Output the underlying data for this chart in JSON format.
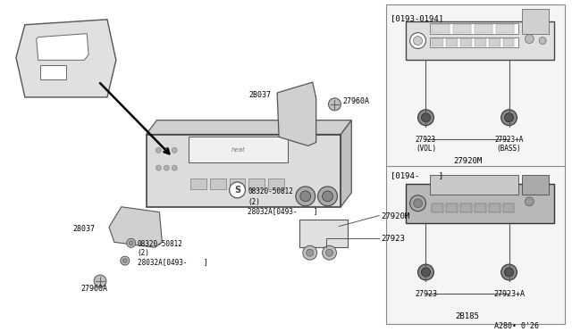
{
  "background_color": "#ffffff",
  "top_box_label": "[0193-0194]",
  "bottom_box_label": "[0194-    ]",
  "top_radio_label": "27920M",
  "bottom_radio_label": "2B185",
  "top_knob1_label": "27923\n(VOL)",
  "top_knob2_label": "27923+A\n(BASS)",
  "bottom_knob1_label": "27923",
  "bottom_knob2_label": "27923+A",
  "main_radio_label": "27920M",
  "main_knob_label": "27923",
  "bracket_label": "2B037",
  "bolt_label": "08320-50812",
  "bolt_label2": "(2)",
  "bolt_label3": "28032A[0493-    ]",
  "screw_label": "27960A",
  "part_number": "A280• 0'26"
}
